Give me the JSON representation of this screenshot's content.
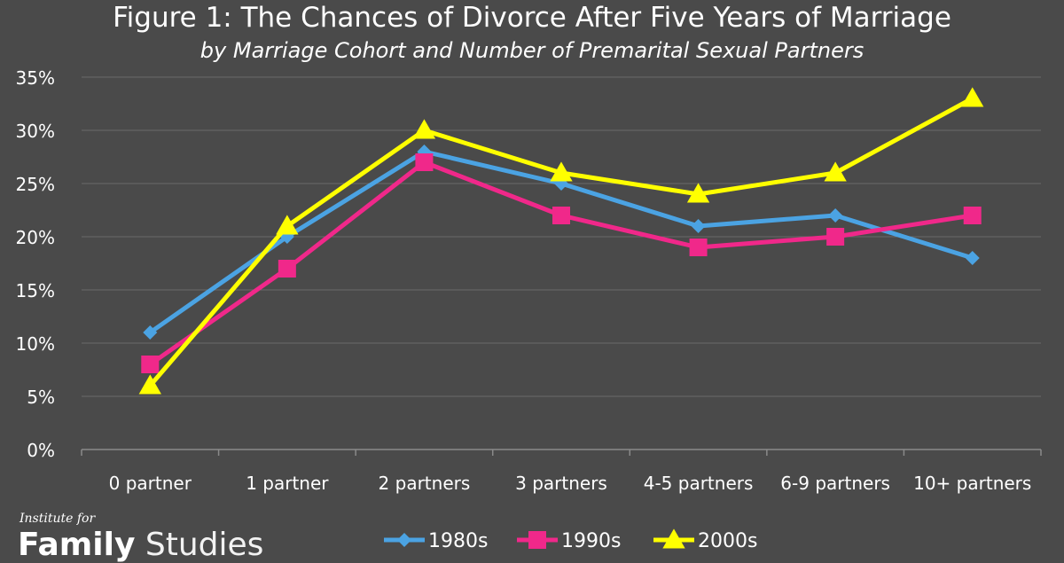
{
  "chart_data": {
    "type": "line",
    "title": "Figure 1: The Chances of Divorce After Five Years of Marriage",
    "subtitle": "by Marriage Cohort and Number of Premarital Sexual Partners",
    "xlabel": "",
    "ylabel": "",
    "categories": [
      "0 partner",
      "1 partner",
      "2 partners",
      "3 partners",
      "4-5 partners",
      "6-9 partners",
      "10+ partners"
    ],
    "y_ticks": [
      "0%",
      "5%",
      "10%",
      "15%",
      "20%",
      "25%",
      "30%",
      "35%"
    ],
    "ylim": [
      0,
      35
    ],
    "grid": true,
    "legend": "bottom",
    "series": [
      {
        "name": "1980s",
        "color": "#4ba3e3",
        "marker": "diamond",
        "values": [
          11,
          20,
          28,
          25,
          21,
          22,
          18
        ]
      },
      {
        "name": "1990s",
        "color": "#f0288a",
        "marker": "square",
        "values": [
          8,
          17,
          27,
          22,
          19,
          20,
          22
        ]
      },
      {
        "name": "2000s",
        "color": "#ffff00",
        "marker": "triangle",
        "values": [
          6,
          21,
          30,
          26,
          24,
          26,
          33
        ]
      }
    ]
  },
  "logo": {
    "top_text": "Institute for",
    "bold_text": "Family",
    "light_text": " Studies"
  },
  "colors": {
    "background": "#4a4a4a",
    "gridline": "#6a6a6a",
    "axis": "#8a8a8a"
  }
}
